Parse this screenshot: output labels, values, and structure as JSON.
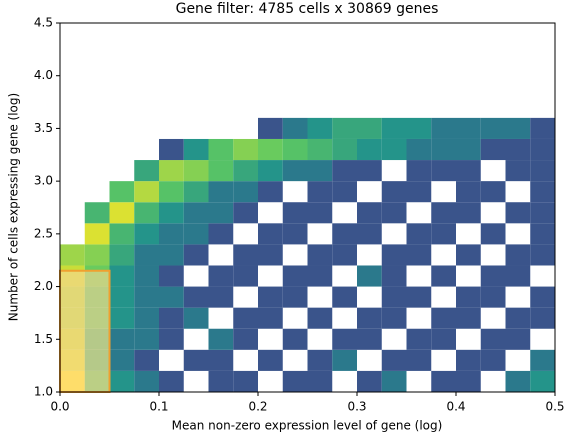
{
  "chart_data": {
    "type": "hist2d",
    "title": "Gene filter: 4785 cells x 30869 genes",
    "xlabel": "Mean non-zero expression level of gene (log)",
    "ylabel": "Number of cells expressing gene (log)",
    "xlim": [
      0,
      0.5
    ],
    "ylim": [
      1,
      4.5
    ],
    "xticks": [
      {
        "value": 0,
        "label": "0.0"
      },
      0.1,
      0.2,
      0.3,
      0.4,
      0.5
    ],
    "yticks": [
      {
        "value": 1,
        "label": "1.0"
      },
      1.5,
      {
        "value": 2,
        "label": "2.0"
      },
      2.5,
      {
        "value": 3,
        "label": "3.0"
      },
      3.5,
      {
        "value": 4,
        "label": "4.0"
      },
      4.5
    ],
    "xbins": [
      0,
      0.025,
      0.05,
      0.075,
      0.1,
      0.125,
      0.15,
      0.175,
      0.2,
      0.225,
      0.25,
      0.275,
      0.3,
      0.325,
      0.35,
      0.375,
      0.4,
      0.425,
      0.45,
      0.475,
      0.5
    ],
    "ybins": [
      1,
      1.2,
      1.4,
      1.6,
      1.8,
      2,
      2.2,
      2.4,
      2.6,
      2.8,
      3,
      3.2,
      3.4,
      3.6
    ],
    "counts": [
      [
        14,
        6,
        3,
        2,
        1,
        0,
        1,
        1,
        0,
        1,
        1,
        0,
        1,
        2,
        0,
        1,
        1,
        0,
        2,
        3
      ],
      [
        12,
        5,
        2,
        1,
        0,
        1,
        1,
        0,
        1,
        0,
        1,
        2,
        0,
        1,
        1,
        0,
        1,
        1,
        0,
        2
      ],
      [
        11,
        5,
        2,
        2,
        1,
        0,
        2,
        1,
        0,
        1,
        0,
        1,
        1,
        0,
        1,
        1,
        0,
        1,
        1,
        0
      ],
      [
        10,
        6,
        3,
        2,
        1,
        2,
        0,
        1,
        1,
        0,
        1,
        0,
        1,
        1,
        0,
        1,
        1,
        0,
        1,
        1
      ],
      [
        10,
        6,
        3,
        2,
        2,
        1,
        1,
        0,
        1,
        1,
        0,
        1,
        0,
        1,
        1,
        0,
        1,
        1,
        0,
        1
      ],
      [
        11,
        7,
        3,
        2,
        1,
        0,
        1,
        1,
        0,
        1,
        1,
        0,
        2,
        1,
        0,
        1,
        0,
        1,
        1,
        0
      ],
      [
        9,
        8,
        4,
        2,
        2,
        1,
        0,
        1,
        1,
        0,
        1,
        1,
        0,
        1,
        1,
        0,
        1,
        0,
        1,
        1
      ],
      [
        0,
        12,
        5,
        3,
        2,
        2,
        1,
        0,
        1,
        1,
        0,
        1,
        1,
        0,
        1,
        1,
        0,
        1,
        0,
        1
      ],
      [
        0,
        5,
        12,
        5,
        3,
        2,
        2,
        1,
        0,
        1,
        1,
        0,
        1,
        1,
        0,
        1,
        1,
        0,
        1,
        1
      ],
      [
        0,
        0,
        6,
        10,
        6,
        4,
        2,
        2,
        1,
        0,
        1,
        1,
        0,
        1,
        1,
        0,
        1,
        1,
        0,
        1
      ],
      [
        0,
        0,
        0,
        4,
        9,
        8,
        6,
        4,
        3,
        2,
        2,
        1,
        1,
        0,
        1,
        1,
        1,
        0,
        1,
        1
      ],
      [
        0,
        0,
        0,
        0,
        1,
        3,
        6,
        8,
        7,
        6,
        5,
        4,
        3,
        3,
        2,
        2,
        2,
        1,
        1,
        1
      ],
      [
        0,
        0,
        0,
        0,
        0,
        0,
        0,
        0,
        1,
        2,
        3,
        4,
        4,
        3,
        3,
        2,
        2,
        2,
        2,
        1
      ]
    ],
    "filter_box": {
      "x": [
        0,
        0.05
      ],
      "y": [
        1,
        2.15
      ],
      "edgecolor": "#f0a030",
      "facecolor": "#ffd79a"
    }
  }
}
